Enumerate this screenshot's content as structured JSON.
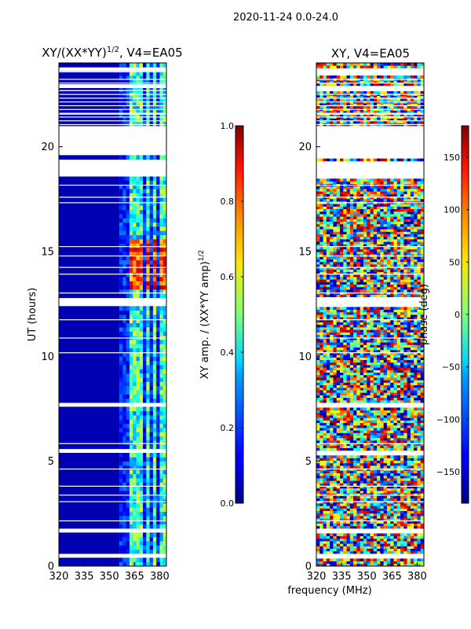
{
  "figure": {
    "suptitle": "2020-11-24 0.0-24.0",
    "shared_xlabel": "frequency (MHz)"
  },
  "chart_data": [
    {
      "type": "heatmap",
      "title": "XY/(XX*YY)",
      "title_exponent": "1/2",
      "title_suffix": ", V4=EA05",
      "xlabel": "frequency (MHz)",
      "ylabel": "UT (hours)",
      "xlim": [
        320,
        384
      ],
      "ylim": [
        0,
        24
      ],
      "x_ticks": [
        "320",
        "335",
        "350",
        "365",
        "380"
      ],
      "x_tick_values": [
        320,
        335,
        350,
        365,
        380
      ],
      "y_ticks": [
        "0",
        "5",
        "10",
        "15",
        "20"
      ],
      "y_tick_values": [
        0,
        5,
        10,
        15,
        20
      ],
      "colormap": "jet",
      "colorbar": {
        "label": "XY amp. / (XX*YY amp)",
        "label_exponent": "1/2",
        "range": [
          0.0,
          1.0
        ],
        "ticks": [
          "0.0",
          "0.2",
          "0.4",
          "0.6",
          "0.8",
          "1.0"
        ],
        "tick_values": [
          0.0,
          0.2,
          0.4,
          0.6,
          0.8,
          1.0
        ]
      },
      "gaps_hours": [
        [
          0.35,
          0.55
        ],
        [
          1.55,
          1.7
        ],
        [
          5.25,
          5.45
        ],
        [
          7.45,
          7.8
        ],
        [
          12.35,
          12.75
        ],
        [
          18.4,
          19.2
        ],
        [
          19.4,
          20.9
        ],
        [
          22.6,
          22.9
        ],
        [
          23.4,
          23.7
        ]
      ],
      "features": [
        {
          "name": "low-coherence background",
          "freq_range": [
            320,
            353
          ],
          "value": 0.05
        },
        {
          "name": "high-coherence band",
          "freq_range": [
            356,
            384
          ],
          "value": 0.8,
          "ut_range": [
            13.0,
            15.5
          ]
        }
      ]
    },
    {
      "type": "heatmap",
      "title": "XY, V4=EA05",
      "xlabel": "frequency (MHz)",
      "ylabel": "",
      "xlim": [
        320,
        384
      ],
      "ylim": [
        0,
        24
      ],
      "x_ticks": [
        "320",
        "335",
        "350",
        "365",
        "380"
      ],
      "x_tick_values": [
        320,
        335,
        350,
        365,
        380
      ],
      "y_ticks": [
        "0",
        "5",
        "10",
        "15",
        "20"
      ],
      "y_tick_values": [
        0,
        5,
        10,
        15,
        20
      ],
      "colormap": "jet",
      "colorbar": {
        "label": "phase (deg)",
        "range": [
          -180,
          180
        ],
        "ticks": [
          "−150",
          "−100",
          "−50",
          "0",
          "50",
          "100",
          "150"
        ],
        "tick_values": [
          -150,
          -100,
          -50,
          0,
          50,
          100,
          150
        ]
      },
      "gaps_hours": [
        [
          0.35,
          0.55
        ],
        [
          1.55,
          1.7
        ],
        [
          5.25,
          5.45
        ],
        [
          7.45,
          7.8
        ],
        [
          12.35,
          12.75
        ],
        [
          18.4,
          19.2
        ],
        [
          19.4,
          20.9
        ],
        [
          22.6,
          22.9
        ],
        [
          23.4,
          23.7
        ]
      ],
      "features": [
        {
          "name": "random phase noise",
          "freq_range": [
            320,
            384
          ],
          "value_range": [
            -180,
            180
          ]
        }
      ]
    }
  ]
}
